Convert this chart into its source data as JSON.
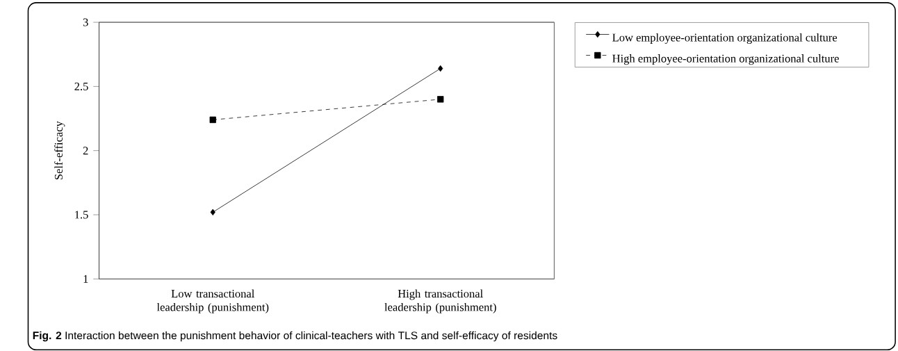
{
  "chart_data": {
    "type": "line",
    "ylabel": "Self-efficacy",
    "categories": [
      "Low transactional leadership (punishment)",
      "High transactional leadership (punishment)"
    ],
    "ylim": [
      1,
      3
    ],
    "yticks": [
      1,
      1.5,
      2,
      2.5,
      3
    ],
    "grid": false,
    "legend": "right",
    "series": [
      {
        "name": "Low employee-orientation organizational culture",
        "color": "#000000",
        "marker": "diamond",
        "line_style": "solid",
        "values": [
          1.52,
          2.64
        ]
      },
      {
        "name": "High employee-orientation organizational culture",
        "color": "#000000",
        "marker": "square",
        "line_style": "dashed",
        "values": [
          2.24,
          2.4
        ]
      }
    ],
    "annotations": [
      "**Fig. 2** Interaction between the punishment behavior of clinical-teachers with TLS and self-efficacy of residents"
    ]
  }
}
